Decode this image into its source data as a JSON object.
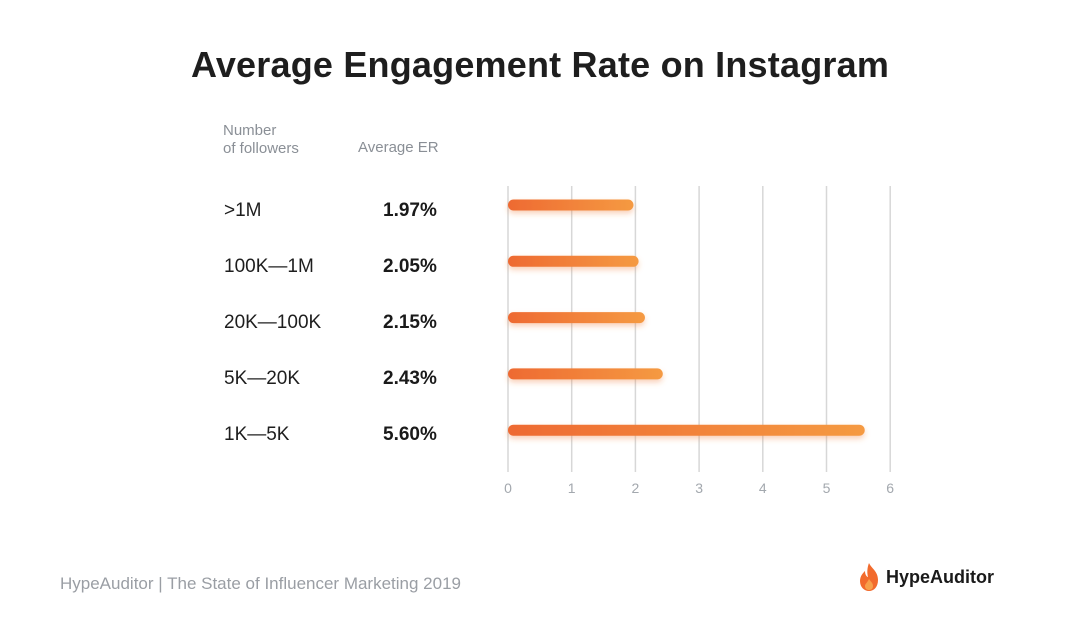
{
  "title": "Average Engagement Rate on Instagram",
  "headers": {
    "followers_line1": "Number",
    "followers_line2": "of followers",
    "er": "Average ER"
  },
  "footer": {
    "source": "HypeAuditor | The State of Influencer Marketing 2019",
    "brand": "HypeAuditor"
  },
  "colors": {
    "bar_start": "#ee6a32",
    "bar_end": "#f59a42",
    "grid": "#d7d7d7",
    "tick": "#a3a8ae",
    "logo": "#f26b2d"
  },
  "chart_data": {
    "type": "bar",
    "orientation": "horizontal",
    "title": "Average Engagement Rate on Instagram",
    "categories": [
      ">1M",
      "100K—1M",
      "20K—100K",
      "5K—20K",
      "1K—5K"
    ],
    "value_labels": [
      "1.97%",
      "2.05%",
      "2.15%",
      "2.43%",
      "5.60%"
    ],
    "values": [
      1.97,
      2.05,
      2.15,
      2.43,
      5.6
    ],
    "xlim": [
      0,
      6
    ],
    "xticks": [
      "0",
      "1",
      "2",
      "3",
      "4",
      "5",
      "6"
    ],
    "xlabel": "",
    "ylabel": "Number of followers",
    "grid": true
  }
}
